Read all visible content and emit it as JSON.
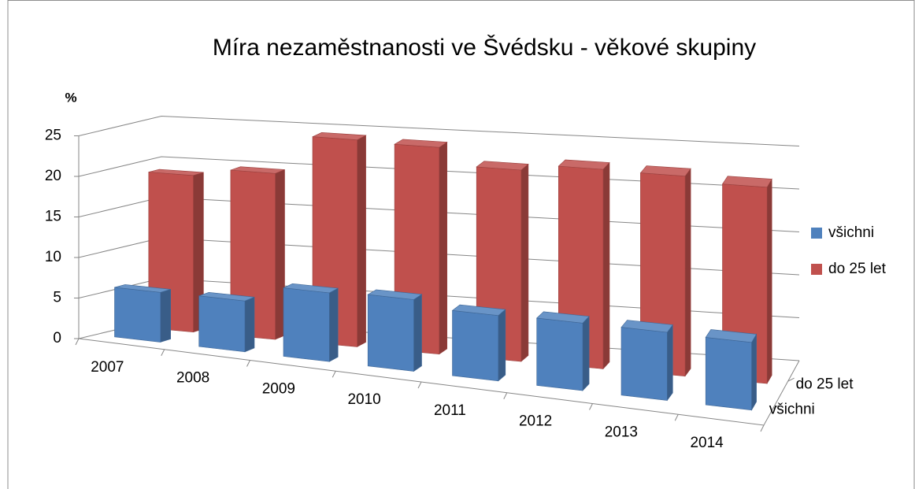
{
  "chart_data": {
    "type": "bar3d",
    "title": "Míra nezaměstnanosti ve Švédsku - věkové skupiny",
    "y_label": "%",
    "categories": [
      "2007",
      "2008",
      "2009",
      "2010",
      "2011",
      "2012",
      "2013",
      "2014"
    ],
    "series": [
      {
        "name": "všichni",
        "color": "#4f81bd",
        "values": [
          6.1,
          6.2,
          8.3,
          8.6,
          7.8,
          8.0,
          8.0,
          7.9
        ]
      },
      {
        "name": "do 25 let",
        "color": "#c0504d",
        "values": [
          19.2,
          20.2,
          25.0,
          24.8,
          22.8,
          23.6,
          23.5,
          22.9
        ]
      }
    ],
    "ylim": [
      0,
      25
    ],
    "yticks": [
      0,
      5,
      10,
      15,
      20,
      25
    ],
    "grid": true,
    "legend": "right"
  }
}
